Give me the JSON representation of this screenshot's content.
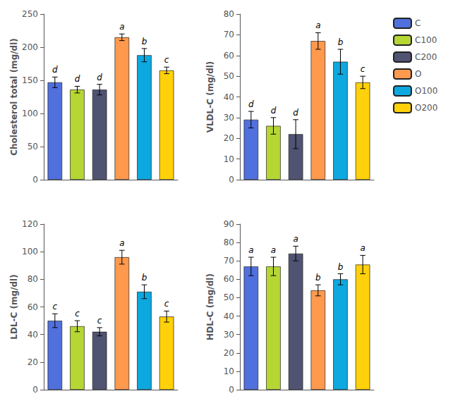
{
  "chart_data": [
    {
      "type": "bar",
      "categories": [
        "C",
        "C100",
        "C200",
        "O",
        "O100",
        "O200"
      ],
      "values": [
        147,
        136,
        136,
        215,
        188,
        165
      ],
      "errors": [
        8,
        5,
        8,
        5,
        10,
        5
      ],
      "annotations": [
        "d",
        "d",
        "d",
        "a",
        "b",
        "c"
      ],
      "y_label": "Cholesterol total (mg/dl)",
      "ylim": [
        0,
        250
      ],
      "yticks": [
        0,
        50,
        100,
        150,
        200,
        250
      ],
      "grid": false,
      "tick_labels": "y"
    },
    {
      "type": "bar",
      "categories": [
        "C",
        "C100",
        "C200",
        "O",
        "O100",
        "O200"
      ],
      "values": [
        29,
        26,
        22,
        67,
        57,
        47
      ],
      "errors": [
        4,
        4,
        7,
        4,
        6,
        3
      ],
      "annotations": [
        "d",
        "d",
        "d",
        "a",
        "b",
        "c"
      ],
      "y_label": "VLDL-C (mg/dl)",
      "ylim": [
        0,
        80
      ],
      "yticks": [
        0,
        10,
        20,
        30,
        40,
        50,
        60,
        70,
        80
      ],
      "grid": false,
      "tick_labels": "y",
      "legend": "right"
    },
    {
      "type": "bar",
      "categories": [
        "C",
        "C100",
        "C200",
        "O",
        "O100",
        "O200"
      ],
      "values": [
        50,
        46,
        42,
        96,
        71,
        53
      ],
      "errors": [
        5,
        4,
        3,
        5,
        5,
        4
      ],
      "annotations": [
        "c",
        "c",
        "c",
        "a",
        "b",
        "c"
      ],
      "y_label": "LDL-C (mg/dl)",
      "ylim": [
        0,
        120
      ],
      "yticks": [
        0,
        20,
        40,
        60,
        80,
        100,
        120
      ],
      "grid": false,
      "tick_labels": "y"
    },
    {
      "type": "bar",
      "categories": [
        "C",
        "C100",
        "C200",
        "O",
        "O100",
        "O200"
      ],
      "values": [
        67,
        67,
        74,
        54,
        60,
        68
      ],
      "errors": [
        5,
        5,
        4,
        3,
        3,
        5
      ],
      "annotations": [
        "a",
        "a",
        "a",
        "b",
        "b",
        "a"
      ],
      "y_label": "HDL-C (mg/dl)",
      "ylim": [
        0,
        90
      ],
      "yticks": [
        0,
        10,
        20,
        30,
        40,
        50,
        60,
        70,
        80,
        90
      ],
      "grid": false,
      "tick_labels": "y"
    }
  ]
}
